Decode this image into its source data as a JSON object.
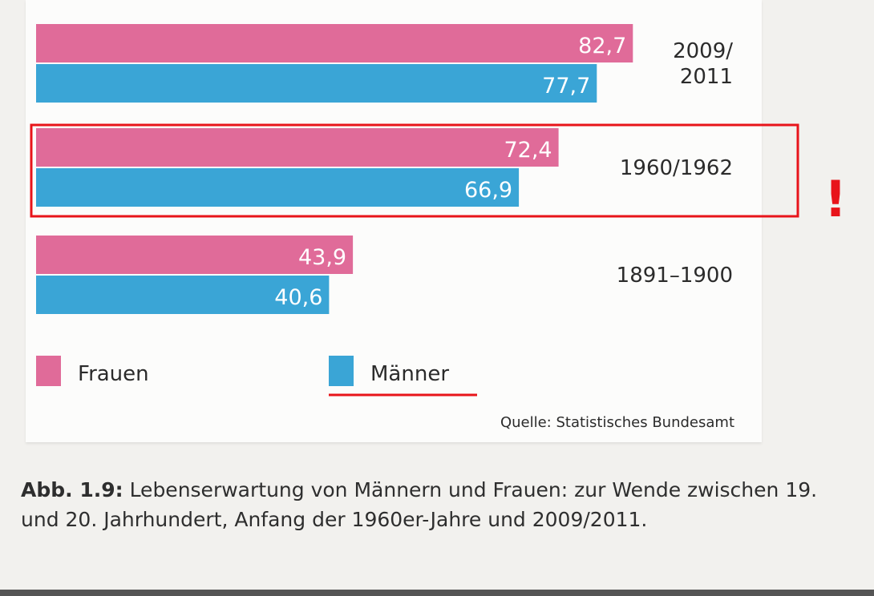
{
  "chart_data": {
    "type": "bar",
    "orientation": "horizontal",
    "categories": [
      "2009/\n2011",
      "1960/1962",
      "1891–1900"
    ],
    "series": [
      {
        "name": "Frauen",
        "values": [
          82.7,
          72.4,
          43.9
        ],
        "labels": [
          "82,7",
          "72,4",
          "43,9"
        ],
        "color": "#e06b99"
      },
      {
        "name": "Männer",
        "values": [
          77.7,
          66.9,
          40.6
        ],
        "labels": [
          "77,7",
          "66,9",
          "40,6"
        ],
        "color": "#3aa5d6"
      }
    ],
    "xlim": [
      0,
      92
    ],
    "grid": false,
    "legend_placement": "bottom-left",
    "source": "Quelle: Statistisches Bundesamt"
  },
  "annotation": {
    "highlight_category": "1960/1962",
    "mark": "!",
    "highlight_color": "#e8141a",
    "underlined_legend_entry": "Männer"
  },
  "caption": {
    "number": "Abb. 1.9:",
    "text": " Lebenserwartung von Männern und Frauen: zur Wende zwischen 19. und 20. Jahrhundert, Anfang der 1960er-Jahre und 2009/2011."
  }
}
